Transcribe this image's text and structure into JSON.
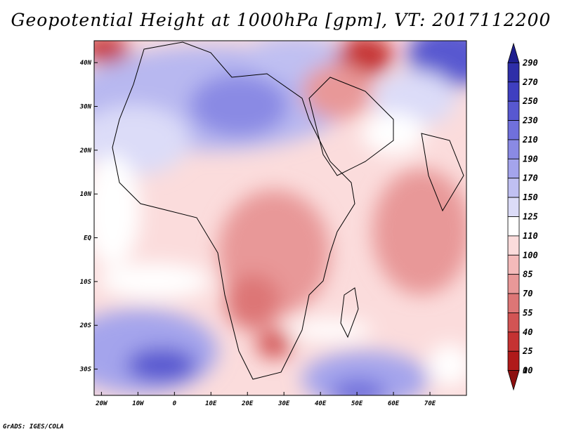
{
  "title": "Geopotential Height at 1000hPa [gpm], VT: 2017112200",
  "credit": "GrADS: IGES/COLA",
  "map": {
    "lat_ticks": [
      "40N",
      "30N",
      "20N",
      "10N",
      "EQ",
      "10S",
      "20S",
      "30S"
    ],
    "lat_values": [
      40,
      30,
      20,
      10,
      0,
      -10,
      -20,
      -30
    ],
    "lon_ticks": [
      "20W",
      "10W",
      "0",
      "10E",
      "20E",
      "30E",
      "40E",
      "50E",
      "60E",
      "70E"
    ],
    "lon_values": [
      -20,
      -10,
      0,
      10,
      20,
      30,
      40,
      50,
      60,
      70
    ],
    "lat_range": [
      -36,
      45
    ],
    "lon_range": [
      -22,
      80
    ]
  },
  "colorbar": {
    "labels": [
      "290",
      "270",
      "250",
      "230",
      "210",
      "190",
      "170",
      "150",
      "125",
      "110",
      "100",
      "85",
      "70",
      "55",
      "40",
      "25",
      "10",
      "0"
    ],
    "colors": [
      "#1f1f8f",
      "#2e2ea8",
      "#3f3fc0",
      "#5858d0",
      "#7070dc",
      "#8a8ae4",
      "#a4a4ec",
      "#c0c0f2",
      "#dcdcf8",
      "#ffffff",
      "#fbdcdc",
      "#f4baba",
      "#e89898",
      "#dd7676",
      "#d25454",
      "#c53232",
      "#b01a1a",
      "#8c0f0f"
    ]
  },
  "colors": {
    "land_outline": "#000000"
  }
}
